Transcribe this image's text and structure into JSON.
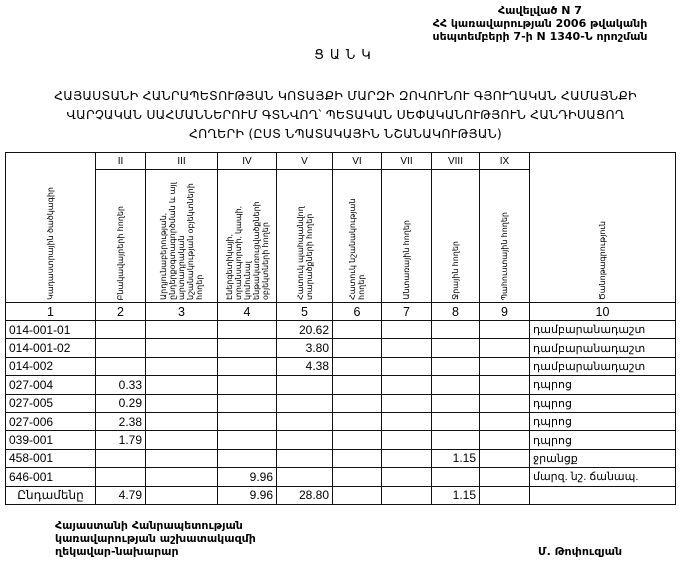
{
  "annex": {
    "line1": "Հավելված N 7",
    "line2": "ՀՀ կառավարության 2006 թվականի",
    "line3": "սեպտեմբերի 7-ի N 1340-Ն որոշման"
  },
  "list_title": "ՑԱՆԿ",
  "title": {
    "line1": "ՀԱՅԱՍՏԱՆԻ ՀԱՆՐԱՊԵՏՈՒԹՅԱՆ ԿՈՏԱՅՔԻ ՄԱՐԶԻ ԶՈՎՈՒՆՈՒ ԳՅՈՒՂԱԿԱՆ ՀԱՄԱՅՆՔԻ",
    "line2": "ՎԱՐՉԱԿԱՆ ՍԱՀՄԱՆՆԵՐՈՒՄ ԳՏՆՎՈՂ՝ ՊԵՏԱԿԱՆ ՍԵՓԱԿԱՆՈՒԹՅՈՒՆ ՀԱՆԴԻՍԱՑՈՂ",
    "line3": "ՀՈՂԵՐԻ (ԸՍՏ ՆՊԱՏԱԿԱՅԻՆ ՆՇԱՆԱԿՈՒԹՅԱՆ)"
  },
  "table": {
    "roman": [
      "",
      "II",
      "III",
      "IV",
      "V",
      "VI",
      "VII",
      "VIII",
      "IX",
      ""
    ],
    "headers": [
      "Կադաստրային ծածկագիր",
      "Բնակավայրերի հողեր",
      "Արդյունաբերության, ընդերքօգտագործման և այլ արտադրական նշանակության օբյեկտների հողեր",
      "Էներգետիկայի, տրանսպորտի, կապի, կոմունալ ենթակառուցվածքների օբյեկտների հողեր",
      "Հատուկ պահպանվող տարածքների հողեր",
      "Հատուկ նշանակության հողեր",
      "Անտառային հողեր",
      "Ջրային հողեր",
      "Պահուստային հողեր",
      "Ծանոթագրություն"
    ],
    "numbers": [
      "1",
      "2",
      "3",
      "4",
      "5",
      "6",
      "7",
      "8",
      "9",
      "10"
    ],
    "rows": [
      [
        "014-001-01",
        "",
        "",
        "",
        "20.62",
        "",
        "",
        "",
        "",
        "դամբարանադաշտ"
      ],
      [
        "014-001-02",
        "",
        "",
        "",
        "3.80",
        "",
        "",
        "",
        "",
        "դամբարանադաշտ"
      ],
      [
        "014-002",
        "",
        "",
        "",
        "4.38",
        "",
        "",
        "",
        "",
        "դամբարանադաշտ"
      ],
      [
        "027-004",
        "0.33",
        "",
        "",
        "",
        "",
        "",
        "",
        "",
        "դպրոց"
      ],
      [
        "027-005",
        "0.29",
        "",
        "",
        "",
        "",
        "",
        "",
        "",
        "դպրոց"
      ],
      [
        "027-006",
        "2.38",
        "",
        "",
        "",
        "",
        "",
        "",
        "",
        "դպրոց"
      ],
      [
        "039-001",
        "1.79",
        "",
        "",
        "",
        "",
        "",
        "",
        "",
        "դպրոց"
      ],
      [
        "458-001",
        "",
        "",
        "",
        "",
        "",
        "",
        "1.15",
        "",
        "ջրանցք"
      ],
      [
        "646-001",
        "",
        "",
        "9.96",
        "",
        "",
        "",
        "",
        "",
        "մարզ. նշ. ճանապ."
      ]
    ],
    "total": [
      "Ընդամենը",
      "4.79",
      "",
      "9.96",
      "28.80",
      "",
      "",
      "1.15",
      "",
      ""
    ]
  },
  "signature": {
    "line1": "Հայաստանի Հանրապետության",
    "line2": "կառավարության աշխատակազմի",
    "line3": "ղեկավար-նախարար",
    "name": "Մ. Թոփուզյան"
  }
}
